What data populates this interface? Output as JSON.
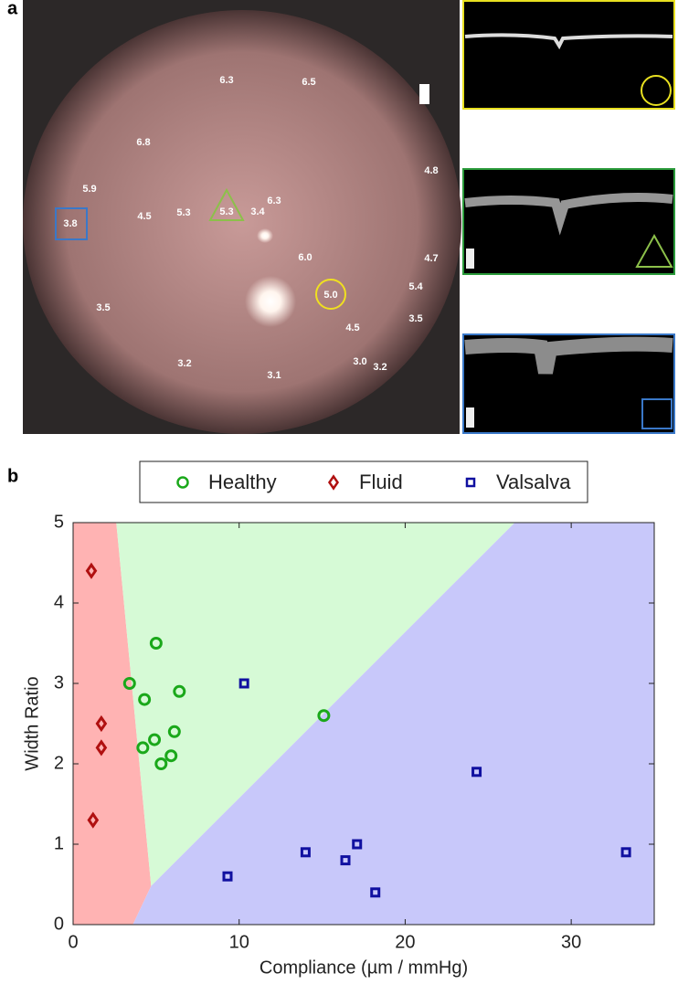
{
  "panel_a": {
    "letter": "a",
    "labels": [
      "6.3",
      "6.5",
      "6.8",
      "4.8",
      "5.9",
      "6.3",
      "3.8",
      "4.5",
      "5.3",
      "5.3",
      "3.4",
      "6.0",
      "4.7",
      "5.4",
      "5.0",
      "3.5",
      "3.5",
      "4.5",
      "3.0",
      "3.2",
      "3.2",
      "3.1"
    ]
  },
  "chart_data": {
    "type": "scatter",
    "letter": "b",
    "xlabel": "Compliance (µm / mmHg)",
    "ylabel": "Width Ratio",
    "xlim": [
      0,
      35
    ],
    "ylim": [
      0,
      5
    ],
    "xticks": [
      0,
      10,
      20,
      30
    ],
    "yticks": [
      0,
      1,
      2,
      3,
      4,
      5
    ],
    "regions": [
      {
        "color": "#ffb3b3",
        "points": [
          [
            0,
            5
          ],
          [
            2.6,
            5
          ],
          [
            4.7,
            0.48
          ],
          [
            3.6,
            0
          ],
          [
            0,
            0
          ]
        ]
      },
      {
        "color": "#d6fad6",
        "points": [
          [
            2.6,
            5
          ],
          [
            26.6,
            5
          ],
          [
            4.7,
            0.48
          ]
        ]
      },
      {
        "color": "#c8c8fa",
        "points": [
          [
            26.6,
            5
          ],
          [
            35,
            5
          ],
          [
            35,
            0
          ],
          [
            3.6,
            0
          ],
          [
            4.7,
            0.48
          ]
        ]
      }
    ],
    "series": [
      {
        "name": "Healthy",
        "color": "#1aa81a",
        "marker": "circle",
        "x": [
          3.4,
          5.0,
          4.3,
          6.4,
          4.9,
          4.2,
          5.3,
          6.1,
          5.9,
          15.1
        ],
        "values": [
          3.0,
          3.5,
          2.8,
          2.9,
          2.3,
          2.2,
          2.0,
          2.4,
          2.1,
          2.6
        ]
      },
      {
        "name": "Fluid",
        "color": "#b01010",
        "marker": "diamond",
        "x": [
          1.1,
          1.7,
          1.7,
          1.2
        ],
        "values": [
          4.4,
          2.5,
          2.2,
          1.3
        ]
      },
      {
        "name": "Valsalva",
        "color": "#1010a0",
        "marker": "square",
        "x": [
          10.3,
          24.3,
          14.0,
          17.1,
          16.4,
          9.3,
          18.2,
          33.3
        ],
        "values": [
          3.0,
          1.9,
          0.9,
          1.0,
          0.8,
          0.6,
          0.4,
          0.9
        ]
      }
    ]
  }
}
